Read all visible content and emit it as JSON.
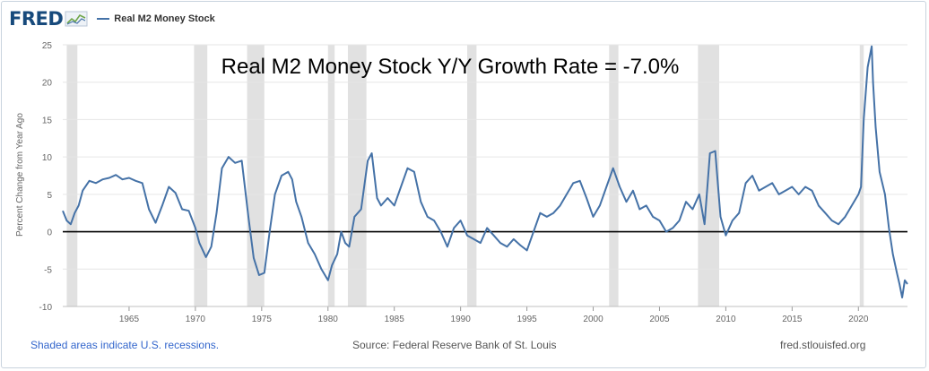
{
  "header": {
    "logo_text": "FRED",
    "legend_label": "Real M2 Money Stock",
    "series_color": "#4572a7"
  },
  "footer": {
    "recessions_note": "Shaded areas indicate U.S. recessions.",
    "source": "Source: Federal Reserve Bank of St. Louis",
    "site": "fred.stlouisfed.org"
  },
  "chart_data": {
    "type": "line",
    "title": "Real M2 Money Stock Y/Y Growth Rate = -7.0%",
    "ylabel": "Percent Change from Year Ago",
    "xlabel": "",
    "xlim": [
      1960.0,
      2023.7
    ],
    "ylim": [
      -10,
      25
    ],
    "x_ticks": [
      1965,
      1970,
      1975,
      1980,
      1985,
      1990,
      1995,
      2000,
      2005,
      2010,
      2015,
      2020
    ],
    "y_ticks": [
      -10,
      -5,
      0,
      5,
      10,
      15,
      20,
      25
    ],
    "grid": "horizontal",
    "zero_line": true,
    "legend": "top-left",
    "recessions": [
      [
        1960.3,
        1961.1
      ],
      [
        1969.9,
        1970.9
      ],
      [
        1973.9,
        1975.2
      ],
      [
        1980.0,
        1980.5
      ],
      [
        1981.5,
        1982.9
      ],
      [
        1990.5,
        1991.2
      ],
      [
        2001.2,
        2001.9
      ],
      [
        2007.9,
        2009.5
      ],
      [
        2020.1,
        2020.4
      ]
    ],
    "series": [
      {
        "color": "#4572a7",
        "x": [
          1960.0,
          1960.3,
          1960.6,
          1960.9,
          1961.2,
          1961.5,
          1962.0,
          1962.5,
          1963.0,
          1963.5,
          1964.0,
          1964.5,
          1965.0,
          1965.5,
          1966.0,
          1966.5,
          1967.0,
          1967.5,
          1968.0,
          1968.5,
          1969.0,
          1969.5,
          1970.0,
          1970.3,
          1970.8,
          1971.2,
          1971.6,
          1972.0,
          1972.5,
          1973.0,
          1973.5,
          1974.0,
          1974.4,
          1974.8,
          1975.2,
          1975.6,
          1976.0,
          1976.5,
          1977.0,
          1977.3,
          1977.6,
          1978.0,
          1978.5,
          1979.0,
          1979.5,
          1980.0,
          1980.3,
          1980.7,
          1981.0,
          1981.3,
          1981.6,
          1982.0,
          1982.5,
          1983.0,
          1983.3,
          1983.7,
          1984.0,
          1984.5,
          1985.0,
          1985.5,
          1986.0,
          1986.5,
          1987.0,
          1987.5,
          1988.0,
          1988.5,
          1989.0,
          1989.5,
          1990.0,
          1990.5,
          1991.0,
          1991.5,
          1992.0,
          1992.5,
          1993.0,
          1993.5,
          1994.0,
          1994.5,
          1995.0,
          1995.5,
          1996.0,
          1996.5,
          1997.0,
          1997.5,
          1998.0,
          1998.5,
          1999.0,
          1999.5,
          2000.0,
          2000.5,
          2001.0,
          2001.5,
          2002.0,
          2002.5,
          2003.0,
          2003.5,
          2004.0,
          2004.5,
          2005.0,
          2005.5,
          2006.0,
          2006.5,
          2007.0,
          2007.5,
          2008.0,
          2008.4,
          2008.8,
          2009.2,
          2009.6,
          2010.0,
          2010.5,
          2011.0,
          2011.5,
          2012.0,
          2012.5,
          2013.0,
          2013.5,
          2014.0,
          2014.5,
          2015.0,
          2015.5,
          2016.0,
          2016.5,
          2017.0,
          2017.5,
          2018.0,
          2018.5,
          2019.0,
          2019.5,
          2020.0,
          2020.2,
          2020.4,
          2020.7,
          2021.0,
          2021.1,
          2021.3,
          2021.6,
          2022.0,
          2022.3,
          2022.6,
          2022.9,
          2023.1,
          2023.3,
          2023.5,
          2023.7
        ],
        "values": [
          2.8,
          1.5,
          1.0,
          2.5,
          3.5,
          5.5,
          6.8,
          6.5,
          7.0,
          7.2,
          7.6,
          7.0,
          7.2,
          6.8,
          6.5,
          3.0,
          1.2,
          3.5,
          6.0,
          5.2,
          3.0,
          2.8,
          0.5,
          -1.5,
          -3.4,
          -2.0,
          2.5,
          8.5,
          10.0,
          9.2,
          9.5,
          2.0,
          -3.5,
          -5.8,
          -5.5,
          0.0,
          5.0,
          7.5,
          8.0,
          7.0,
          4.0,
          2.0,
          -1.5,
          -3.0,
          -5.0,
          -6.5,
          -4.5,
          -3.0,
          0.0,
          -1.5,
          -2.0,
          2.0,
          3.0,
          9.5,
          10.5,
          4.5,
          3.5,
          4.5,
          3.5,
          6.0,
          8.5,
          8.0,
          4.0,
          2.0,
          1.5,
          0.0,
          -2.0,
          0.5,
          1.5,
          -0.5,
          -1.0,
          -1.5,
          0.5,
          -0.5,
          -1.5,
          -2.0,
          -1.0,
          -1.8,
          -2.5,
          0.0,
          2.5,
          2.0,
          2.5,
          3.5,
          5.0,
          6.5,
          6.8,
          4.5,
          2.0,
          3.5,
          6.0,
          8.5,
          6.0,
          4.0,
          5.5,
          3.0,
          3.5,
          2.0,
          1.5,
          0.0,
          0.5,
          1.5,
          4.0,
          3.0,
          5.0,
          1.0,
          10.5,
          10.8,
          2.0,
          -0.5,
          1.5,
          2.5,
          6.5,
          7.5,
          5.5,
          6.0,
          6.5,
          5.0,
          5.5,
          6.0,
          5.0,
          6.0,
          5.5,
          3.5,
          2.5,
          1.5,
          1.0,
          2.0,
          3.5,
          5.0,
          6.0,
          15.0,
          22.0,
          24.8,
          20.0,
          14.0,
          8.0,
          5.0,
          0.5,
          -3.0,
          -5.5,
          -7.0,
          -8.8,
          -6.5,
          -7.0
        ]
      }
    ]
  }
}
